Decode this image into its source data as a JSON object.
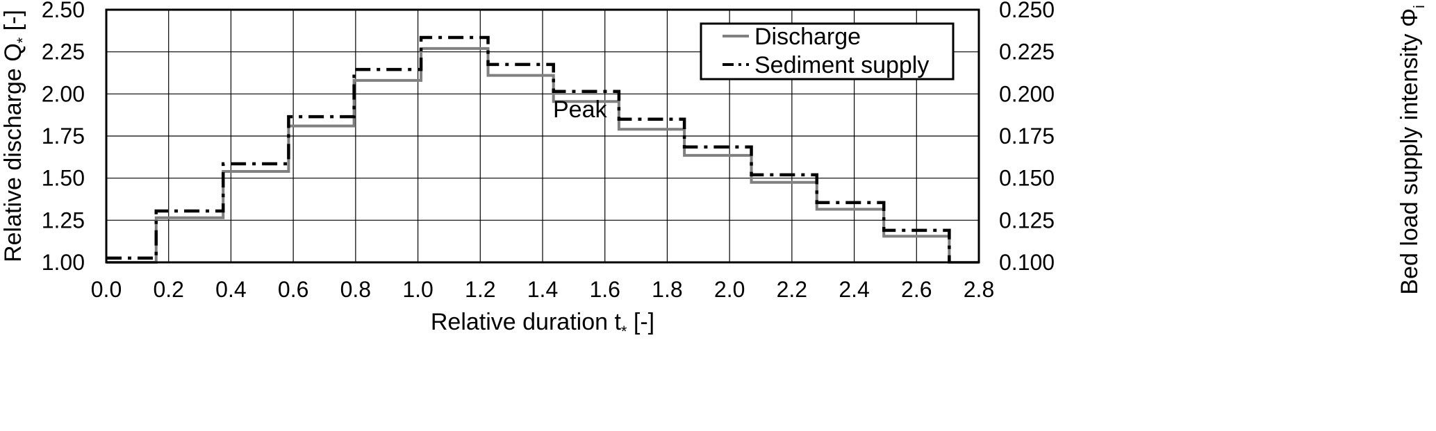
{
  "chart_data": {
    "type": "line",
    "line_shape": "step",
    "xlabel": "Relative duration t",
    "xlabel_sub": "*",
    "xlabel_unit": " [-]",
    "ylabel_left": "Relative discharge Q",
    "ylabel_left_sub": "*",
    "ylabel_left_unit": " [-]",
    "ylabel_right": "Bed load supply intensity Φ",
    "ylabel_right_sub": "i",
    "ylabel_right_unit": " [-]",
    "xlim": [
      0.0,
      2.8
    ],
    "ylim_left": [
      1.0,
      2.5
    ],
    "ylim_right": [
      0.1,
      0.25
    ],
    "x_ticks": [
      "0.0",
      "0.2",
      "0.4",
      "0.6",
      "0.8",
      "1.0",
      "1.2",
      "1.4",
      "1.6",
      "1.8",
      "2.0",
      "2.2",
      "2.4",
      "2.6",
      "2.8"
    ],
    "y_left_ticks": [
      "1.00",
      "1.25",
      "1.50",
      "1.75",
      "2.00",
      "2.25",
      "2.50"
    ],
    "y_right_ticks": [
      "0.100",
      "0.125",
      "0.150",
      "0.175",
      "0.200",
      "0.225",
      "0.250"
    ],
    "grid": true,
    "legend_position": "top-right",
    "annotation": "Peak",
    "series": [
      {
        "name": "Discharge",
        "axis": "left",
        "color": "#808080",
        "style": "solid",
        "x": [
          0.0,
          0.16,
          0.375,
          0.585,
          0.795,
          1.01,
          1.225,
          1.435,
          1.645,
          1.855,
          2.07,
          2.28,
          2.495,
          2.705,
          2.8
        ],
        "y": [
          1.0,
          1.265,
          1.54,
          1.81,
          2.08,
          2.27,
          2.11,
          1.955,
          1.79,
          1.635,
          1.475,
          1.315,
          1.155,
          1.0,
          1.0
        ]
      },
      {
        "name": "Sediment supply",
        "axis": "right",
        "color": "#000000",
        "style": "dash-dot",
        "x": [
          0.0,
          0.16,
          0.375,
          0.585,
          0.795,
          1.01,
          1.225,
          1.435,
          1.645,
          1.855,
          2.07,
          2.28,
          2.495,
          2.705
        ],
        "y": [
          0.1025,
          0.1305,
          0.1585,
          0.1865,
          0.2145,
          0.2335,
          0.2175,
          0.2015,
          0.185,
          0.1685,
          0.152,
          0.1355,
          0.119,
          0.1
        ]
      }
    ]
  }
}
